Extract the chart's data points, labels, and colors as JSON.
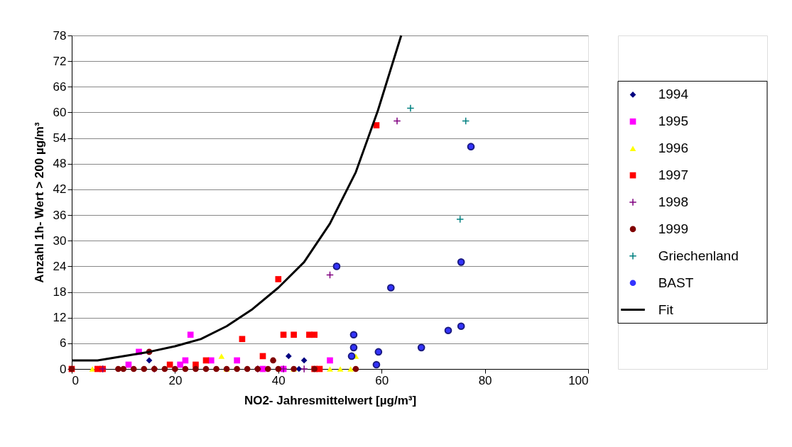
{
  "chart_data": {
    "type": "scatter",
    "xlabel": "NO2- Jahresmittelwert [µg/m³]",
    "ylabel": "Anzahl 1h- Wert > 200 µg/m³",
    "xlim": [
      0,
      100
    ],
    "xticks": [
      0,
      20,
      40,
      60,
      80,
      100
    ],
    "ylim": [
      0,
      78
    ],
    "yticks": [
      0,
      6,
      12,
      18,
      24,
      30,
      36,
      42,
      48,
      54,
      60,
      66,
      72,
      78
    ],
    "grid": "y",
    "legend": "right",
    "series": [
      {
        "name": "1994",
        "color": "#000080",
        "marker": "diamond",
        "x": [
          15,
          42,
          45,
          44,
          37,
          47
        ],
        "values": [
          2,
          3,
          2,
          0,
          0,
          0
        ]
      },
      {
        "name": "1995",
        "color": "#ff00ff",
        "marker": "square",
        "x": [
          13,
          23,
          11,
          22,
          21,
          27,
          32,
          50,
          37,
          41
        ],
        "values": [
          4,
          8,
          1,
          2,
          1,
          2,
          2,
          2,
          0,
          0
        ]
      },
      {
        "name": "1996",
        "color": "#ffff00",
        "marker": "triangle",
        "x": [
          29,
          55,
          4,
          50,
          52,
          54,
          43,
          30
        ],
        "values": [
          3,
          3,
          0,
          0,
          0,
          0,
          0,
          0
        ]
      },
      {
        "name": "1997",
        "color": "#ff0000",
        "marker": "square",
        "x": [
          0,
          59,
          40,
          33,
          41,
          43,
          46,
          47,
          37,
          26,
          24,
          19,
          5,
          47,
          48,
          6
        ],
        "values": [
          0,
          57,
          21,
          7,
          8,
          8,
          8,
          8,
          3,
          2,
          1,
          1,
          0,
          0,
          0,
          0
        ]
      },
      {
        "name": "1998",
        "color": "#800080",
        "marker": "cross",
        "x": [
          63,
          50,
          6,
          16,
          36,
          41,
          45
        ],
        "values": [
          58,
          22,
          0,
          0,
          0,
          0,
          0
        ]
      },
      {
        "name": "1999",
        "color": "#800000",
        "marker": "circle",
        "x": [
          15,
          39,
          55,
          0,
          9,
          10,
          12,
          14,
          16,
          18,
          20,
          22,
          24,
          26,
          28,
          30,
          32,
          34,
          36,
          38,
          40,
          43,
          47
        ],
        "values": [
          4,
          2,
          0,
          0,
          0,
          0,
          0,
          0,
          0,
          0,
          0,
          0,
          0,
          0,
          0,
          0,
          0,
          0,
          0,
          0,
          0,
          0,
          0
        ]
      },
      {
        "name": "Griechenland",
        "color": "#008080",
        "marker": "cross",
        "x": [
          65.6,
          76.3,
          75.2
        ],
        "values": [
          61,
          58,
          35
        ]
      },
      {
        "name": "BAST",
        "color": "#3333ff",
        "marker": "circle",
        "x": [
          51.3,
          61.8,
          77.3,
          75.4,
          54.6,
          54.6,
          54.2,
          59.4,
          59,
          67.7,
          72.9,
          75.4
        ],
        "values": [
          24,
          19,
          52,
          25,
          8,
          5,
          3,
          4,
          1,
          5,
          9,
          10
        ]
      },
      {
        "name": "Fit",
        "color": "#000000",
        "type": "line",
        "marker": "none",
        "line_style": "solid",
        "x": [
          0,
          5,
          10,
          15,
          20,
          25,
          30,
          35,
          40,
          45,
          50,
          55,
          59.3,
          63.8
        ],
        "values": [
          2,
          2,
          3,
          4,
          5.3,
          7,
          10,
          14,
          19,
          25,
          34,
          46,
          60.5,
          78
        ]
      }
    ]
  }
}
